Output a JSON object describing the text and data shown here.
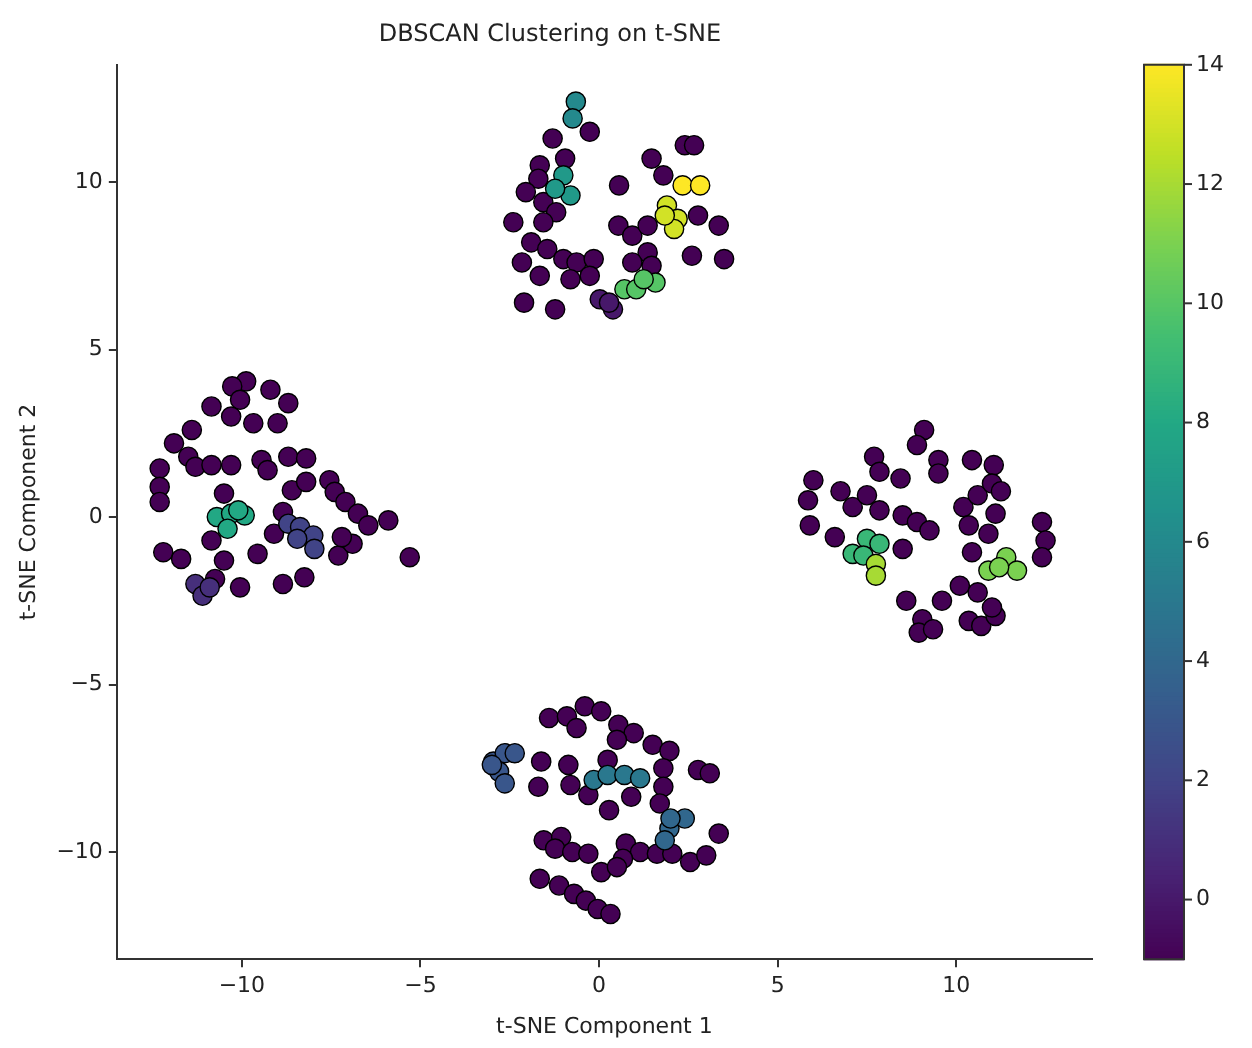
{
  "chart_data": {
    "type": "scatter",
    "title": "DBSCAN Clustering on t-SNE",
    "xlabel": "t-SNE Component 1",
    "ylabel": "t-SNE Component 2",
    "clim": [
      -1,
      14
    ],
    "cticks": [
      0,
      2,
      4,
      6,
      8,
      10,
      12,
      14
    ],
    "xlim": [
      -13.5,
      13.8
    ],
    "ylim": [
      -13.2,
      13.5
    ],
    "xticks": [
      {
        "value": -10,
        "label": "−10"
      },
      {
        "value": -5,
        "label": "−5"
      },
      0,
      5,
      10
    ],
    "yticks": [
      {
        "value": -10,
        "label": "−10"
      },
      {
        "value": -5,
        "label": "−5"
      },
      0,
      5,
      10
    ],
    "marker": "circle",
    "legend": false,
    "grid": false,
    "series": [
      {
        "x": [
          -0.65,
          -0.74,
          -0.26,
          -1.3,
          -0.95,
          -1.66,
          -1.7,
          -2.05,
          -1.56,
          -1.2,
          -2.4,
          -1.56,
          -1.9,
          -1.45,
          -2.16,
          -1.0,
          -1.66,
          -0.63,
          -0.15,
          -0.8,
          -0.26,
          -2.1,
          -1.23,
          0.56,
          0.54,
          0.93,
          1.36,
          1.47,
          1.8,
          2.4,
          2.66,
          2.77,
          3.35,
          2.6,
          3.5,
          1.36,
          1.47,
          0.93,
          0.02,
          0.39,
          0.28,
          -1.0,
          -0.8,
          -1.23,
          0.71,
          1.04,
          1.58,
          1.25,
          2.34,
          2.83,
          1.9,
          2.2,
          2.1,
          1.84,
          -9.88,
          -10.27,
          -10.85,
          -10.05,
          -9.2,
          -8.7,
          -10.3,
          -9.68,
          -9.0,
          -11.4,
          -11.9,
          -11.5,
          -12.3,
          -11.3,
          -10.85,
          -10.3,
          -9.45,
          -9.28,
          -8.7,
          -8.2,
          -12.3,
          -12.3,
          -10.5,
          -8.6,
          -8.2,
          -7.55,
          -7.4,
          -7.1,
          -6.75,
          -6.46,
          -5.9,
          -8.85,
          -9.1,
          -12.2,
          -11.7,
          -10.85,
          -10.5,
          -9.56,
          -7.3,
          -6.9,
          -7.2,
          -5.3,
          -10.05,
          -8.85,
          -8.25,
          -10.75,
          -11.3,
          -11.1,
          -10.9,
          -8.7,
          -8.37,
          -8.0,
          -7.97,
          -8.45,
          -10.7,
          -10.3,
          -9.92,
          -10.4,
          -10.1,
          9.1,
          8.9,
          9.5,
          9.5,
          7.7,
          7.85,
          8.44,
          6.0,
          5.85,
          5.9,
          6.76,
          7.1,
          7.5,
          7.85,
          8.5,
          8.9,
          9.25,
          6.6,
          8.5,
          10.44,
          11.05,
          10.2,
          10.6,
          11.0,
          11.25,
          11.1,
          10.9,
          10.35,
          12.4,
          12.5,
          12.4,
          10.44,
          8.6,
          9.6,
          10.1,
          10.6,
          9.05,
          8.95,
          9.35,
          10.35,
          10.7,
          11.1,
          11.0,
          7.5,
          7.85,
          7.1,
          7.4,
          7.75,
          7.75,
          10.9,
          11.4,
          11.7,
          11.2,
          -1.4,
          -0.9,
          -0.4,
          0.06,
          -0.63,
          0.54,
          0.97,
          0.5,
          1.5,
          1.97,
          -1.62,
          -1.7,
          -0.86,
          -0.8,
          0.24,
          -0.3,
          0.28,
          0.9,
          1.8,
          1.8,
          1.7,
          2.77,
          3.1,
          -1.55,
          -1.06,
          -1.23,
          -0.75,
          -0.3,
          0.75,
          1.15,
          0.67,
          0.06,
          0.5,
          1.62,
          2.05,
          2.55,
          3.0,
          3.35,
          -1.66,
          -1.12,
          -0.7,
          -0.37,
          -0.04,
          0.32,
          -2.96,
          -2.64,
          -2.36,
          -2.8,
          -2.64,
          -3.0,
          -0.15,
          0.24,
          0.71,
          1.15,
          1.97,
          2.4,
          2.0,
          1.84
        ],
        "values": [
          12.4,
          11.9,
          11.5,
          11.3,
          10.7,
          10.5,
          10.1,
          9.7,
          9.4,
          9.1,
          8.8,
          8.8,
          8.2,
          8.0,
          7.6,
          7.7,
          7.2,
          7.6,
          7.7,
          7.1,
          7.2,
          6.4,
          6.2,
          9.9,
          8.7,
          8.4,
          8.7,
          10.7,
          10.2,
          11.1,
          11.1,
          9.0,
          8.7,
          7.8,
          7.7,
          7.9,
          7.5,
          7.6,
          6.5,
          6.2,
          6.4,
          10.2,
          9.6,
          9.8,
          6.8,
          6.8,
          7.0,
          7.1,
          9.9,
          9.9,
          9.3,
          8.9,
          8.6,
          9.0,
          4.05,
          3.9,
          3.3,
          3.5,
          3.8,
          3.4,
          3.0,
          2.8,
          2.8,
          2.6,
          2.2,
          1.8,
          1.45,
          1.5,
          1.55,
          1.55,
          1.7,
          1.4,
          1.8,
          1.75,
          0.9,
          0.45,
          0.7,
          0.8,
          1.05,
          1.1,
          0.75,
          0.45,
          0.1,
          -0.25,
          -0.1,
          0.15,
          -0.5,
          -1.05,
          -1.25,
          -0.7,
          -1.3,
          -1.1,
          -1.15,
          -0.8,
          -0.6,
          -1.2,
          -2.1,
          -2.0,
          -1.8,
          -1.85,
          -2.0,
          -2.35,
          -2.1,
          -0.2,
          -0.3,
          -0.55,
          -0.95,
          -0.65,
          0.0,
          0.1,
          0.05,
          -0.35,
          0.2,
          2.6,
          2.15,
          1.7,
          1.3,
          1.8,
          1.35,
          1.15,
          1.1,
          0.5,
          -0.25,
          0.77,
          0.3,
          0.65,
          0.2,
          0.05,
          -0.15,
          -0.4,
          -0.6,
          -0.95,
          1.7,
          1.55,
          0.3,
          0.65,
          1.0,
          0.77,
          0.1,
          -0.5,
          -0.25,
          -0.15,
          -0.7,
          -1.2,
          -1.05,
          -2.5,
          -2.5,
          -2.05,
          -2.25,
          -3.05,
          -3.45,
          -3.35,
          -3.1,
          -3.25,
          -2.95,
          -2.7,
          -0.65,
          -0.8,
          -1.1,
          -1.15,
          -1.4,
          -1.75,
          -1.6,
          -1.2,
          -1.6,
          -1.5,
          -6.0,
          -5.95,
          -5.65,
          -5.8,
          -6.3,
          -6.2,
          -6.45,
          -6.65,
          -6.8,
          -6.98,
          -7.3,
          -8.05,
          -7.4,
          -8.0,
          -7.25,
          -8.3,
          -8.75,
          -8.35,
          -7.5,
          -8.05,
          -8.55,
          -7.55,
          -7.65,
          -9.65,
          -9.55,
          -9.9,
          -10.0,
          -10.05,
          -9.75,
          -10.0,
          -10.2,
          -10.6,
          -10.45,
          -10.05,
          -10.05,
          -10.3,
          -10.1,
          -9.45,
          -10.8,
          -11.0,
          -11.25,
          -11.45,
          -11.7,
          -11.85,
          -7.3,
          -7.05,
          -7.05,
          -7.6,
          -7.95,
          -7.4,
          -7.85,
          -7.7,
          -7.7,
          -7.8,
          -9.3,
          -9.0,
          -9.0,
          -9.65
        ],
        "cvalues": [
          6,
          6,
          -1,
          -1,
          -1,
          -1,
          -1,
          -1,
          -1,
          -1,
          -1,
          -1,
          -1,
          -1,
          -1,
          -1,
          -1,
          -1,
          -1,
          -1,
          -1,
          -1,
          -1,
          -1,
          -1,
          -1,
          -1,
          -1,
          -1,
          -1,
          -1,
          -1,
          -1,
          -1,
          -1,
          -1,
          -1,
          -1,
          0,
          0,
          0,
          7,
          7,
          7,
          10,
          10,
          10,
          10,
          14,
          14,
          13,
          13,
          13,
          13,
          -1,
          -1,
          -1,
          -1,
          -1,
          -1,
          -1,
          -1,
          -1,
          -1,
          -1,
          -1,
          -1,
          -1,
          -1,
          -1,
          -1,
          -1,
          -1,
          -1,
          -1,
          -1,
          -1,
          -1,
          -1,
          -1,
          -1,
          -1,
          -1,
          -1,
          -1,
          -1,
          -1,
          -1,
          -1,
          -1,
          -1,
          -1,
          -1,
          -1,
          -1,
          -1,
          -1,
          -1,
          -1,
          -1,
          1,
          1,
          1,
          2,
          2,
          2,
          2,
          2,
          8,
          8,
          8,
          8,
          8,
          -1,
          -1,
          -1,
          -1,
          -1,
          -1,
          -1,
          -1,
          -1,
          -1,
          -1,
          -1,
          -1,
          -1,
          -1,
          -1,
          -1,
          -1,
          -1,
          -1,
          -1,
          -1,
          -1,
          -1,
          -1,
          -1,
          -1,
          -1,
          -1,
          -1,
          -1,
          -1,
          -1,
          -1,
          -1,
          -1,
          -1,
          -1,
          -1,
          -1,
          -1,
          -1,
          -1,
          9,
          9,
          9,
          9,
          12,
          12,
          11,
          11,
          11,
          11,
          -1,
          -1,
          -1,
          -1,
          -1,
          -1,
          -1,
          -1,
          -1,
          -1,
          -1,
          -1,
          -1,
          -1,
          -1,
          -1,
          -1,
          -1,
          -1,
          -1,
          -1,
          -1,
          -1,
          -1,
          -1,
          -1,
          -1,
          -1,
          -1,
          -1,
          -1,
          -1,
          -1,
          -1,
          -1,
          -1,
          -1,
          -1,
          -1,
          -1,
          -1,
          -1,
          -1,
          -1,
          3,
          3,
          3,
          3,
          3,
          3,
          5,
          5,
          5,
          5,
          4,
          4,
          4,
          4
        ]
      }
    ]
  }
}
